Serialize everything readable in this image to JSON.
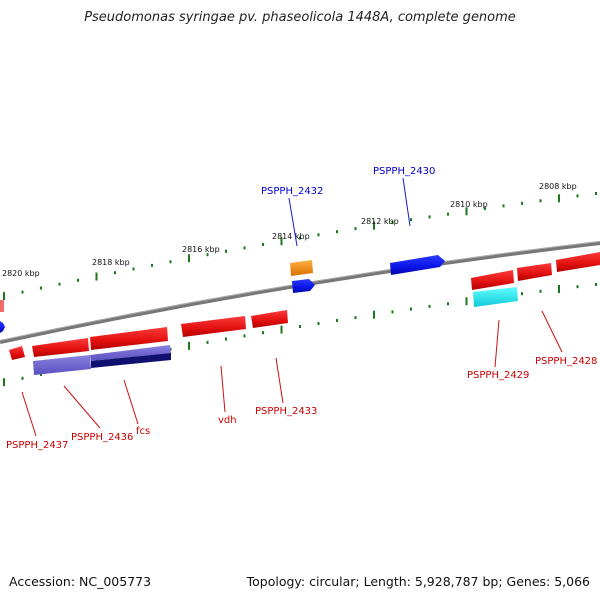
{
  "title": "Pseudomonas syringae pv. phaseolicola 1448A, complete genome",
  "footer": {
    "accession": "Accession: NC_005773",
    "topology": "Topology: circular; Length: 5,928,787 bp; Genes: 5,066"
  },
  "ticks": [
    "2820 kbp",
    "2818 kbp",
    "2816 kbp",
    "2814 kbp",
    "2812 kbp",
    "2810 kbp",
    "2808 kbp"
  ],
  "genes_top": [
    {
      "label": "PSPPH_2432",
      "color": "#0000cc"
    },
    {
      "label": "PSPPH_2430",
      "color": "#0000cc"
    }
  ],
  "genes_bottom": [
    {
      "label": "PSPPH_2437",
      "color": "#cc0000"
    },
    {
      "label": "PSPPH_2436",
      "color": "#cc0000"
    },
    {
      "label": "fcs",
      "color": "#cc0000"
    },
    {
      "label": "vdh",
      "color": "#cc0000"
    },
    {
      "label": "PSPPH_2433",
      "color": "#cc0000"
    },
    {
      "label": "PSPPH_2429",
      "color": "#cc0000"
    },
    {
      "label": "PSPPH_2428",
      "color": "#cc0000"
    }
  ],
  "colors": {
    "red": "#ee1111",
    "blue": "#0a14e6",
    "orange": "#f08c0a",
    "cyan": "#15e8f0",
    "purple": "#6a5fcc",
    "navy": "#101070",
    "backbone": "#777777",
    "tick": "#1a7a1a"
  }
}
